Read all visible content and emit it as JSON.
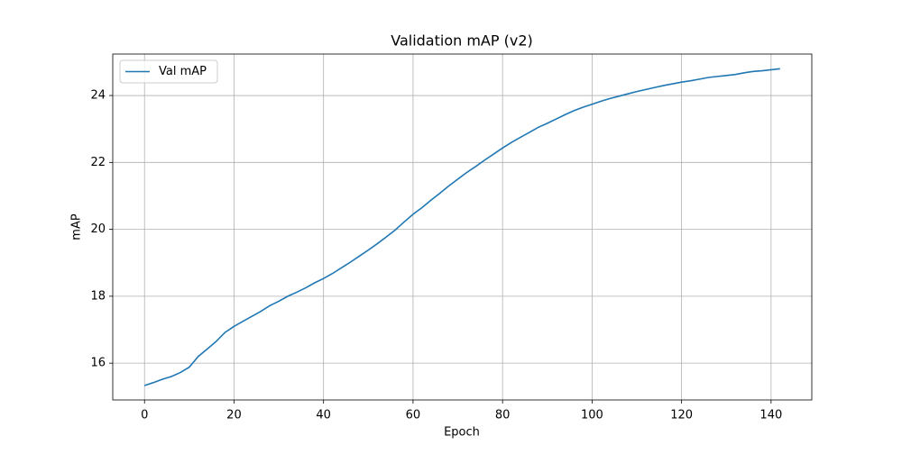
{
  "chart_data": {
    "type": "line",
    "title": "Validation mAP (v2)",
    "x_label": "Epoch",
    "y_label": "mAP",
    "x": [
      0,
      2,
      4,
      6,
      8,
      10,
      12,
      14,
      16,
      18,
      20,
      22,
      24,
      26,
      28,
      30,
      32,
      34,
      36,
      38,
      40,
      42,
      44,
      46,
      48,
      50,
      52,
      54,
      56,
      58,
      60,
      62,
      64,
      66,
      68,
      70,
      72,
      74,
      76,
      78,
      80,
      82,
      84,
      86,
      88,
      90,
      92,
      94,
      96,
      98,
      100,
      102,
      104,
      106,
      108,
      110,
      112,
      114,
      116,
      118,
      120,
      122,
      124,
      126,
      128,
      130,
      132,
      134,
      136,
      138,
      140,
      142
    ],
    "series": [
      {
        "name": "Val mAP",
        "color": "#1f77b4",
        "values": [
          15.33,
          15.42,
          15.52,
          15.6,
          15.72,
          15.88,
          16.2,
          16.42,
          16.65,
          16.92,
          17.1,
          17.25,
          17.4,
          17.55,
          17.72,
          17.85,
          18.0,
          18.12,
          18.25,
          18.4,
          18.53,
          18.68,
          18.85,
          19.02,
          19.2,
          19.38,
          19.57,
          19.77,
          19.98,
          20.22,
          20.45,
          20.65,
          20.87,
          21.08,
          21.3,
          21.5,
          21.7,
          21.88,
          22.07,
          22.25,
          22.43,
          22.6,
          22.75,
          22.9,
          23.05,
          23.17,
          23.3,
          23.43,
          23.55,
          23.65,
          23.74,
          23.83,
          23.91,
          23.98,
          24.05,
          24.12,
          24.18,
          24.24,
          24.3,
          24.35,
          24.4,
          24.44,
          24.49,
          24.54,
          24.57,
          24.6,
          24.63,
          24.68,
          24.72,
          24.74,
          24.77,
          24.8
        ]
      }
    ],
    "xlim": [
      -7.1,
      149.1
    ],
    "ylim": [
      14.9,
      25.24
    ],
    "xticks": [
      0,
      20,
      40,
      60,
      80,
      100,
      120,
      140
    ],
    "yticks": [
      16,
      18,
      20,
      22,
      24
    ],
    "grid": true,
    "legend": "upper left"
  }
}
